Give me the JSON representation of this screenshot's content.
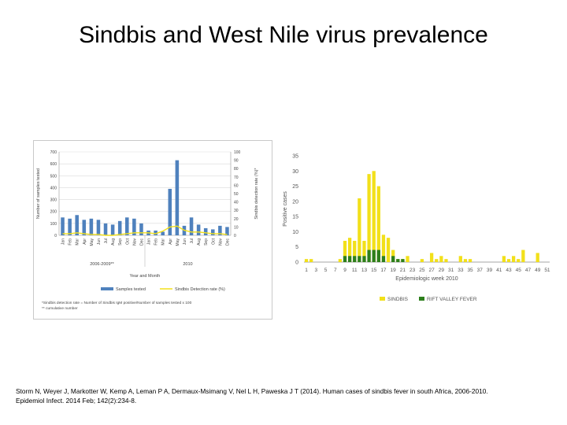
{
  "slide": {
    "title": "Sindbis and West Nile virus prevalence",
    "citation_line1": "Storm N, Weyer J, Markotter W, Kemp A, Leman P A, Dermaux-Msimang V, Nel L H, Paweska J T (2014). Human cases of sindbis fever in south Africa, 2006-2010.",
    "citation_line2": "Epidemiol Infect. 2014 Feb; 142(2):234-8."
  },
  "chart_data": [
    {
      "type": "bar",
      "ylabel": "Number of samples tested",
      "y2label": "Sindbis detection rate (%)*",
      "xlabel": "Year and Month",
      "ylim": [
        0,
        700
      ],
      "y2lim": [
        0,
        100
      ],
      "yticks": [
        "0",
        "100",
        "200",
        "300",
        "400",
        "500",
        "600",
        "700"
      ],
      "y2ticks": [
        "0",
        "10",
        "20",
        "30",
        "40",
        "50",
        "60",
        "70",
        "80",
        "90",
        "100"
      ],
      "categories": [
        "Jan",
        "Feb",
        "Mar",
        "Apr",
        "May",
        "Jun",
        "Jul",
        "Aug",
        "Sep",
        "Oct",
        "Nov",
        "Dec",
        "Jan",
        "Feb",
        "Mar",
        "Apr",
        "May",
        "Jun",
        "Jul",
        "Aug",
        "Sep",
        "Oct",
        "Nov",
        "Dec"
      ],
      "groups": [
        {
          "label": "2006-2009**",
          "from": 0,
          "to": 11
        },
        {
          "label": "2010",
          "from": 12,
          "to": 23
        }
      ],
      "series": [
        {
          "name": "Samples tested",
          "color": "#4f81bd",
          "kind": "bar",
          "axis": "left",
          "values": [
            150,
            140,
            170,
            130,
            140,
            130,
            100,
            90,
            120,
            150,
            140,
            100,
            40,
            40,
            30,
            390,
            630,
            80,
            150,
            90,
            60,
            50,
            80,
            70
          ]
        },
        {
          "name": "Sindbis Detection rate (%)",
          "color": "#f2e01a",
          "kind": "line",
          "axis": "right",
          "values": [
            2,
            2,
            3,
            2,
            1,
            1,
            0,
            0,
            1,
            2,
            3,
            3,
            3,
            2,
            5,
            10,
            11,
            6,
            4,
            4,
            3,
            2,
            2,
            1
          ]
        }
      ],
      "footnotes": [
        "*Sindbis detection rate = Number of Sindbis IgM positive/Number of samples tested x 100",
        "** cumulative number"
      ],
      "legend_position": "bottom"
    },
    {
      "type": "bar",
      "ylabel": "Positive cases",
      "xlabel": "Epidemiologic week 2010",
      "ylim": [
        0,
        35
      ],
      "yticks": [
        "0",
        "5",
        "10",
        "15",
        "20",
        "25",
        "30",
        "35"
      ],
      "weeks": [
        1,
        2,
        3,
        4,
        5,
        6,
        7,
        8,
        9,
        10,
        11,
        12,
        13,
        14,
        15,
        16,
        17,
        18,
        19,
        20,
        21,
        22,
        23,
        24,
        25,
        26,
        27,
        28,
        29,
        30,
        31,
        32,
        33,
        34,
        35,
        36,
        37,
        38,
        39,
        40,
        41,
        42,
        43,
        44,
        45,
        46,
        47,
        48,
        49,
        50,
        51
      ],
      "xticks": [
        "1",
        "3",
        "5",
        "7",
        "9",
        "11",
        "13",
        "15",
        "17",
        "19",
        "21",
        "23",
        "25",
        "27",
        "29",
        "31",
        "33",
        "35",
        "37",
        "39",
        "41",
        "43",
        "45",
        "47",
        "49",
        "51"
      ],
      "series": [
        {
          "name": "SINDBIS",
          "color": "#f2e01a",
          "values": [
            1,
            1,
            0,
            0,
            0,
            0,
            0,
            1,
            7,
            8,
            7,
            21,
            7,
            29,
            30,
            25,
            9,
            8,
            4,
            1,
            1,
            2,
            0,
            0,
            1,
            0,
            3,
            1,
            2,
            1,
            0,
            0,
            2,
            1,
            1,
            0,
            0,
            0,
            0,
            0,
            0,
            2,
            1,
            2,
            1,
            4,
            0,
            0,
            3,
            0,
            0
          ]
        },
        {
          "name": "RIFT VALLEY FEVER",
          "color": "#2d7f1c",
          "values": [
            0,
            0,
            0,
            0,
            0,
            0,
            0,
            0,
            2,
            2,
            2,
            2,
            2,
            4,
            4,
            4,
            2,
            0,
            2,
            1,
            1,
            0,
            0,
            0,
            0,
            0,
            0,
            0,
            0,
            0,
            0,
            0,
            0,
            0,
            0,
            0,
            0,
            0,
            0,
            0,
            0,
            0,
            0,
            0,
            0,
            0,
            0,
            0,
            0,
            0,
            0
          ]
        }
      ],
      "legend_position": "bottom"
    }
  ]
}
